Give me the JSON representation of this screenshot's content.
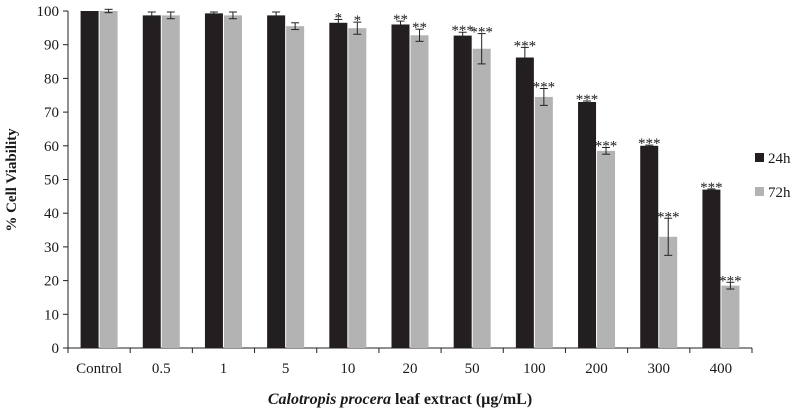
{
  "chart_data": {
    "type": "bar",
    "title": "",
    "ylabel": "% Cell Viability",
    "xlabel_parts": [
      {
        "text": "Calotropis procera",
        "italic": true
      },
      {
        "text": " leaf extract (µg/mL)",
        "italic": false
      }
    ],
    "ylim": [
      0,
      100
    ],
    "yticks": [
      0,
      10,
      20,
      30,
      40,
      50,
      60,
      70,
      80,
      90,
      100
    ],
    "categories": [
      "Control",
      "0.5",
      "1",
      "5",
      "10",
      "20",
      "50",
      "100",
      "200",
      "300",
      "400"
    ],
    "series": [
      {
        "name": "24h",
        "color": "#231f20",
        "values": [
          100,
          98.7,
          99.3,
          98.7,
          96.5,
          96.0,
          92.7,
          86.2,
          73.0,
          60.0,
          47.0
        ],
        "errors": [
          0.0,
          1.0,
          0.4,
          1.0,
          1.0,
          1.0,
          1.0,
          3.0,
          0.3,
          0.2,
          0.2
        ],
        "significance": [
          "",
          "",
          "",
          "",
          "*",
          "**",
          "***",
          "***",
          "***",
          "***",
          "***"
        ]
      },
      {
        "name": "72h",
        "color": "#b3b3b3",
        "values": [
          100,
          98.7,
          98.7,
          95.5,
          94.9,
          92.8,
          88.8,
          74.5,
          58.5,
          33.0,
          18.5
        ],
        "errors": [
          0.5,
          1.0,
          1.0,
          1.0,
          1.8,
          1.8,
          4.5,
          2.5,
          1.0,
          5.5,
          1.0
        ],
        "significance": [
          "",
          "",
          "",
          "",
          "*",
          "**",
          "***",
          "***",
          "***",
          "***",
          "***"
        ]
      }
    ],
    "legend_position": "right",
    "grid": false
  }
}
